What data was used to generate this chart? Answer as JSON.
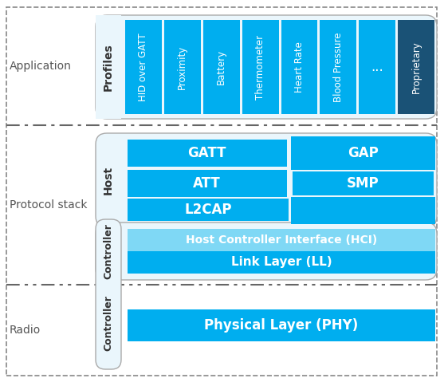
{
  "bg_color": "#ffffff",
  "profiles_bars": [
    {
      "text": "HID over GATT",
      "color": "#00aeef"
    },
    {
      "text": "Proximity",
      "color": "#00aeef"
    },
    {
      "text": "Battery",
      "color": "#00aeef"
    },
    {
      "text": "Thermometer",
      "color": "#00aeef"
    },
    {
      "text": "Heart Rate",
      "color": "#00aeef"
    },
    {
      "text": "Blood Pressure",
      "color": "#00aeef"
    },
    {
      "text": "...",
      "color": "#00aeef"
    },
    {
      "text": "Proprietary",
      "color": "#1a5276"
    }
  ],
  "host_color": "#00aeef",
  "hci_color": "#7fd8f5",
  "ll_color": "#00aeef",
  "phy_color": "#00aeef",
  "label_fontsize": 10,
  "block_fontsize": 12,
  "profile_fontsize": 8.5,
  "section_label_color": "#555555",
  "rounded_face": "#eaf6fc",
  "rounded_edge": "#aaaaaa",
  "label_bg": "#ddeef8"
}
